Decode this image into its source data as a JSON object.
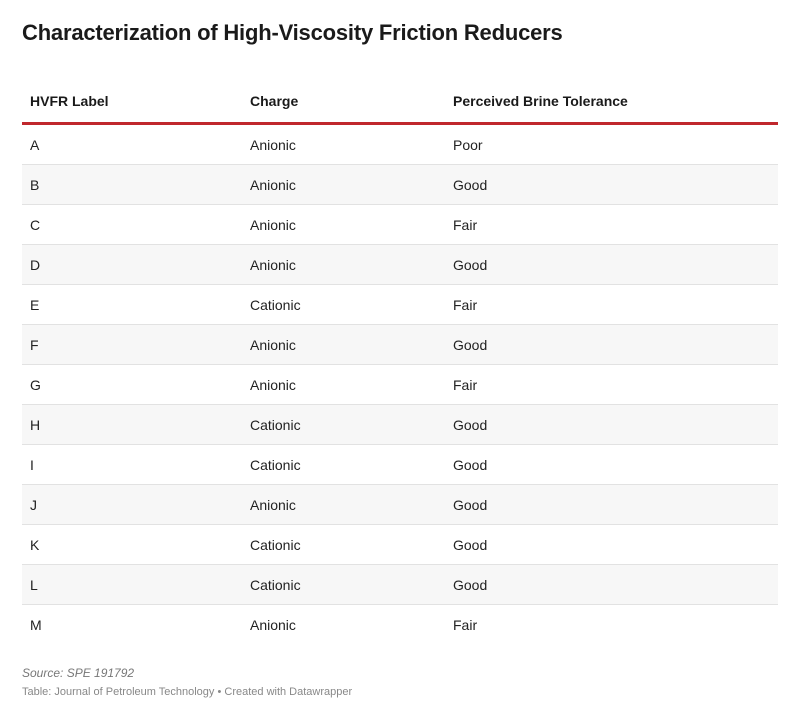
{
  "title": "Characterization of High-Viscosity Friction Reducers",
  "chart_data": {
    "type": "table",
    "title": "Characterization of High-Viscosity Friction Reducers",
    "columns": [
      "HVFR Label",
      "Charge",
      "Perceived Brine Tolerance"
    ],
    "rows": [
      [
        "A",
        "Anionic",
        "Poor"
      ],
      [
        "B",
        "Anionic",
        "Good"
      ],
      [
        "C",
        "Anionic",
        "Fair"
      ],
      [
        "D",
        "Anionic",
        "Good"
      ],
      [
        "E",
        "Cationic",
        "Fair"
      ],
      [
        "F",
        "Anionic",
        "Good"
      ],
      [
        "G",
        "Anionic",
        "Fair"
      ],
      [
        "H",
        "Cationic",
        "Good"
      ],
      [
        "I",
        "Cationic",
        "Good"
      ],
      [
        "J",
        "Anionic",
        "Good"
      ],
      [
        "K",
        "Cationic",
        "Good"
      ],
      [
        "L",
        "Cationic",
        "Good"
      ],
      [
        "M",
        "Anionic",
        "Fair"
      ]
    ]
  },
  "footer": {
    "source": "Source: SPE 191792",
    "credit": "Table: Journal of Petroleum Technology • Created with Datawrapper"
  },
  "colors": {
    "header_rule": "#c0272d",
    "alt_row": "#f7f7f7",
    "row_divider": "#e2e2e2"
  }
}
